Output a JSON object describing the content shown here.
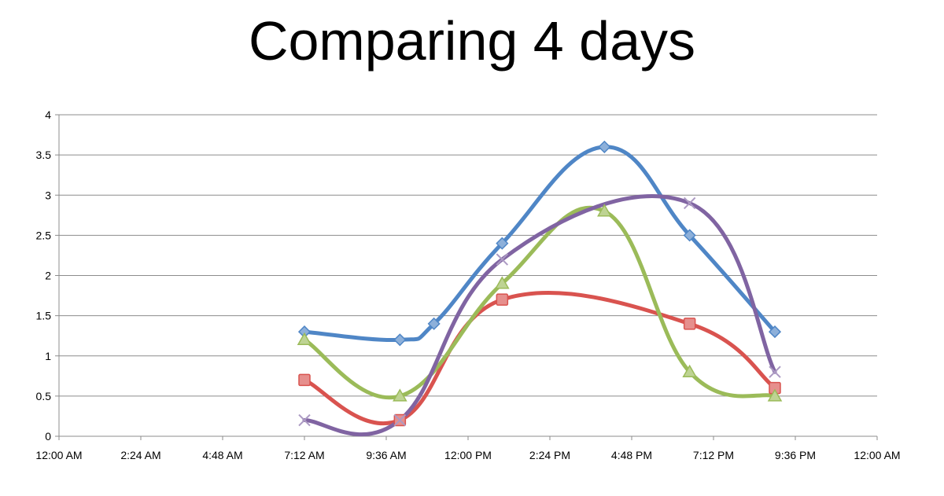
{
  "chart_data": {
    "type": "line",
    "title": "Comparing 4 days",
    "xlabel": "",
    "ylabel": "",
    "x_ticks": [
      "12:00 AM",
      "2:24 AM",
      "4:48 AM",
      "7:12 AM",
      "9:36 AM",
      "12:00 PM",
      "2:24 PM",
      "4:48 PM",
      "7:12 PM",
      "9:36 PM",
      "12:00 AM"
    ],
    "xlim": [
      "00:00",
      "24:00"
    ],
    "y_ticks": [
      "0",
      "0.5",
      "1",
      "1.5",
      "2",
      "2.5",
      "3",
      "3.5",
      "4"
    ],
    "ylim": [
      0,
      4
    ],
    "grid": "horizontal",
    "legend": "none",
    "series": [
      {
        "color": "#4f86c6",
        "marker": "diamond",
        "points": [
          [
            "7:12 AM",
            1.3
          ],
          [
            "10:00 AM",
            1.2
          ],
          [
            "11:00 AM",
            1.4
          ],
          [
            "1:00 PM",
            2.4
          ],
          [
            "4:00 PM",
            3.6
          ],
          [
            "6:30 PM",
            2.5
          ],
          [
            "9:00 PM",
            1.3
          ]
        ]
      },
      {
        "color": "#d9534f",
        "marker": "square",
        "points": [
          [
            "7:12 AM",
            0.7
          ],
          [
            "10:00 AM",
            0.2
          ],
          [
            "1:00 PM",
            1.7
          ],
          [
            "6:30 PM",
            1.4
          ],
          [
            "9:00 PM",
            0.6
          ]
        ]
      },
      {
        "color": "#9bbb59",
        "marker": "triangle",
        "points": [
          [
            "7:12 AM",
            1.2
          ],
          [
            "10:00 AM",
            0.5
          ],
          [
            "1:00 PM",
            1.9
          ],
          [
            "4:00 PM",
            2.8
          ],
          [
            "6:30 PM",
            0.8
          ],
          [
            "9:00 PM",
            0.5
          ]
        ]
      },
      {
        "color": "#8064a2",
        "marker": "x",
        "points": [
          [
            "7:12 AM",
            0.2
          ],
          [
            "10:00 AM",
            0.2
          ],
          [
            "1:00 PM",
            2.2
          ],
          [
            "6:30 PM",
            2.9
          ],
          [
            "9:00 PM",
            0.8
          ]
        ]
      }
    ]
  }
}
